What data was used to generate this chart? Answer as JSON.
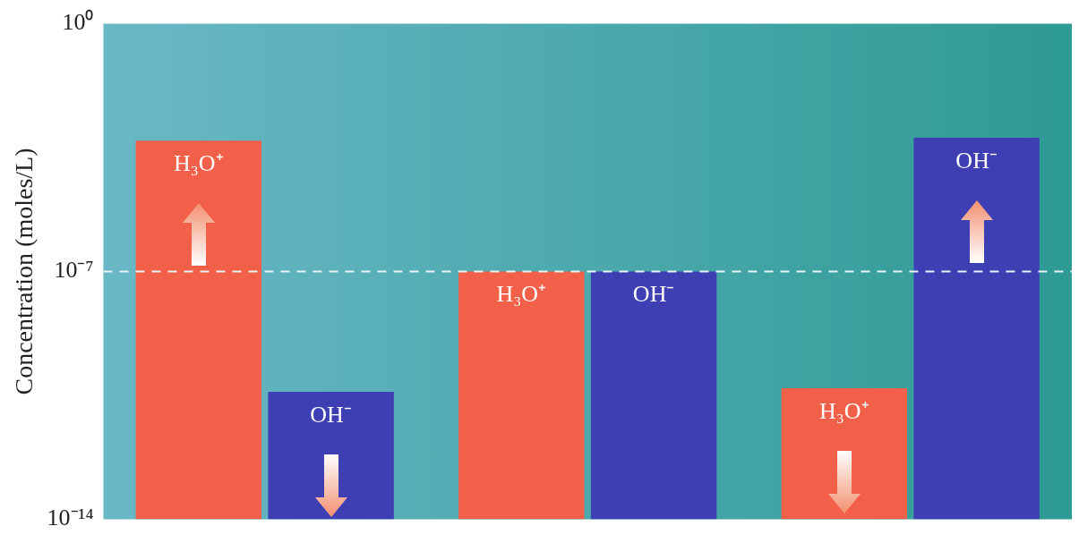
{
  "chart_data": {
    "type": "bar",
    "ylabel": "Concentration (moles/L)",
    "categories": [
      null,
      null,
      null
    ],
    "series": [
      {
        "name": "H₃O⁺",
        "color": "#f2604a",
        "values": [
          0.0005,
          1e-07,
          5e-11
        ]
      },
      {
        "name": "OH⁻",
        "color": "#3d3fb2",
        "values": [
          4e-11,
          1e-07,
          0.0006
        ]
      }
    ],
    "log": true,
    "ylim": [
      1e-14,
      1
    ],
    "yticks": [
      {
        "value": 1e-14,
        "label": "10⁻¹⁴"
      },
      {
        "value": 1e-07,
        "label": "10⁻⁷"
      },
      {
        "value": 1,
        "label": "10⁰"
      }
    ],
    "ref_lines": [
      {
        "axis": "y",
        "value": 1e-07,
        "color": "#e8f4f4",
        "line_style": "dashed"
      }
    ],
    "grid": false,
    "legend": false
  }
}
